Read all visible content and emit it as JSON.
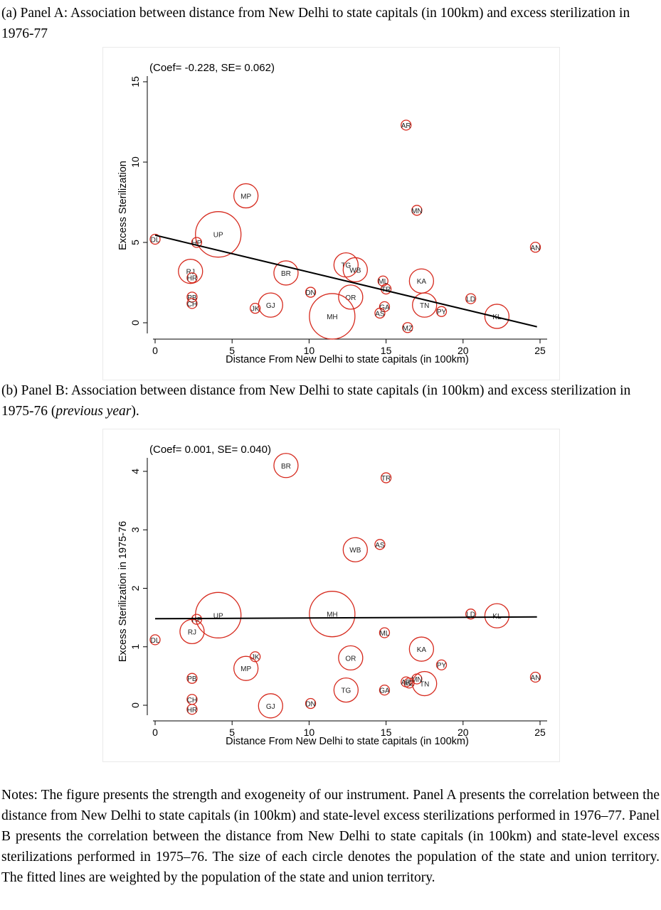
{
  "captions": {
    "a": "(a) Panel A: Association between distance from New Delhi to state capitals (in 100km) and excess sterilization in 1976-77",
    "b_main": "(b) Panel B: Association between distance from New Delhi to state capitals (in 100km) and excess sterilization in 1975-76 (",
    "b_italic": "previous year",
    "b_end": ")."
  },
  "notes": "Notes: The figure presents the strength and exogeneity of our instrument. Panel A presents the correlation between the distance from New Delhi to state capitals (in 100km) and state-level excess sterilizations performed in 1976–77. Panel B presents the correlation between the distance from New Delhi to state capitals (in 100km) and state-level excess sterilizations performed in 1975–76. The size of each circle denotes the population of the state and union territory. The fitted lines are weighted by the population of the state and union territory.",
  "chart_data": [
    {
      "type": "scatter",
      "annotation": "(Coef= -0.228, SE= 0.062)",
      "xlabel": "Distance From New Delhi to state capitals (in 100km)",
      "ylabel": "Excess Sterilization",
      "xlim": [
        0,
        25
      ],
      "ylim": [
        0,
        15
      ],
      "xticks": [
        0,
        5,
        10,
        15,
        20,
        25
      ],
      "yticks": [
        0,
        5,
        10,
        15
      ],
      "marker_color": "#d62a1e",
      "fit_line": {
        "x": [
          0,
          24.8
        ],
        "y": [
          5.45,
          -0.25
        ]
      },
      "points": [
        {
          "label": "AR",
          "x": 16.3,
          "y": 12.3,
          "size": "small"
        },
        {
          "label": "MP",
          "x": 5.9,
          "y": 7.9,
          "size": "medium"
        },
        {
          "label": "MN",
          "x": 17.0,
          "y": 7.0,
          "size": "small"
        },
        {
          "label": "AN",
          "x": 24.7,
          "y": 4.7,
          "size": "small"
        },
        {
          "label": "DL",
          "x": 0.0,
          "y": 5.2,
          "size": "small"
        },
        {
          "label": "HP",
          "x": 2.7,
          "y": 5.0,
          "size": "small"
        },
        {
          "label": "UP",
          "x": 4.1,
          "y": 5.5,
          "size": "large"
        },
        {
          "label": "RJ",
          "x": 2.3,
          "y": 3.2,
          "size": "medium"
        },
        {
          "label": "HR",
          "x": 2.4,
          "y": 2.8,
          "size": "small"
        },
        {
          "label": "PB",
          "x": 2.4,
          "y": 1.6,
          "size": "small"
        },
        {
          "label": "CH",
          "x": 2.4,
          "y": 1.2,
          "size": "small"
        },
        {
          "label": "BR",
          "x": 8.5,
          "y": 3.1,
          "size": "medium"
        },
        {
          "label": "TG",
          "x": 12.4,
          "y": 3.6,
          "size": "medium"
        },
        {
          "label": "WB",
          "x": 13.0,
          "y": 3.3,
          "size": "medium"
        },
        {
          "label": "ML",
          "x": 14.8,
          "y": 2.6,
          "size": "small"
        },
        {
          "label": "TR",
          "x": 15.0,
          "y": 2.1,
          "size": "small"
        },
        {
          "label": "KA",
          "x": 17.3,
          "y": 2.6,
          "size": "medium"
        },
        {
          "label": "DN",
          "x": 10.1,
          "y": 1.9,
          "size": "small"
        },
        {
          "label": "OR",
          "x": 12.7,
          "y": 1.6,
          "size": "medium"
        },
        {
          "label": "LD",
          "x": 20.5,
          "y": 1.5,
          "size": "small"
        },
        {
          "label": "JK",
          "x": 6.5,
          "y": 0.9,
          "size": "small"
        },
        {
          "label": "GJ",
          "x": 7.5,
          "y": 1.1,
          "size": "medium"
        },
        {
          "label": "MH",
          "x": 11.5,
          "y": 0.4,
          "size": "large"
        },
        {
          "label": "GA",
          "x": 14.9,
          "y": 1.0,
          "size": "small"
        },
        {
          "label": "AS",
          "x": 14.6,
          "y": 0.6,
          "size": "small"
        },
        {
          "label": "TN",
          "x": 17.5,
          "y": 1.1,
          "size": "medium"
        },
        {
          "label": "PY",
          "x": 18.6,
          "y": 0.7,
          "size": "small"
        },
        {
          "label": "KL",
          "x": 22.2,
          "y": 0.4,
          "size": "medium"
        },
        {
          "label": "MZ",
          "x": 16.4,
          "y": -0.3,
          "size": "small"
        }
      ]
    },
    {
      "type": "scatter",
      "annotation": "(Coef= 0.001, SE= 0.040)",
      "xlabel": "Distance From New Delhi to state capitals (in 100km)",
      "ylabel": "Excess Sterilization in 1975-76",
      "xlim": [
        0,
        25
      ],
      "ylim": [
        0,
        4
      ],
      "xticks": [
        0,
        5,
        10,
        15,
        20,
        25
      ],
      "yticks": [
        0,
        1,
        2,
        3,
        4
      ],
      "marker_color": "#d62a1e",
      "fit_line": {
        "x": [
          0,
          24.8
        ],
        "y": [
          1.48,
          1.51
        ]
      },
      "points": [
        {
          "label": "BR",
          "x": 8.5,
          "y": 4.1,
          "size": "medium"
        },
        {
          "label": "TR",
          "x": 15.0,
          "y": 3.89,
          "size": "small"
        },
        {
          "label": "AS",
          "x": 14.6,
          "y": 2.75,
          "size": "small"
        },
        {
          "label": "WB",
          "x": 13.0,
          "y": 2.66,
          "size": "medium"
        },
        {
          "label": "UP",
          "x": 4.1,
          "y": 1.54,
          "size": "large"
        },
        {
          "label": "HP",
          "x": 2.7,
          "y": 1.47,
          "size": "small"
        },
        {
          "label": "MH",
          "x": 11.5,
          "y": 1.56,
          "size": "large"
        },
        {
          "label": "LD",
          "x": 20.5,
          "y": 1.56,
          "size": "small"
        },
        {
          "label": "KL",
          "x": 22.2,
          "y": 1.53,
          "size": "medium"
        },
        {
          "label": "RJ",
          "x": 2.4,
          "y": 1.26,
          "size": "medium"
        },
        {
          "label": "ML",
          "x": 14.9,
          "y": 1.24,
          "size": "small"
        },
        {
          "label": "DL",
          "x": 0.0,
          "y": 1.12,
          "size": "small"
        },
        {
          "label": "KA",
          "x": 17.3,
          "y": 0.96,
          "size": "medium"
        },
        {
          "label": "JK",
          "x": 6.5,
          "y": 0.83,
          "size": "small"
        },
        {
          "label": "OR",
          "x": 12.7,
          "y": 0.81,
          "size": "medium"
        },
        {
          "label": "PY",
          "x": 18.6,
          "y": 0.69,
          "size": "small"
        },
        {
          "label": "MP",
          "x": 5.9,
          "y": 0.63,
          "size": "medium"
        },
        {
          "label": "PB",
          "x": 2.4,
          "y": 0.46,
          "size": "small"
        },
        {
          "label": "AN",
          "x": 24.7,
          "y": 0.48,
          "size": "small"
        },
        {
          "label": "AR",
          "x": 16.3,
          "y": 0.4,
          "size": "small"
        },
        {
          "label": "MN",
          "x": 17.0,
          "y": 0.45,
          "size": "small"
        },
        {
          "label": "MZ",
          "x": 16.5,
          "y": 0.38,
          "size": "small"
        },
        {
          "label": "TN",
          "x": 17.5,
          "y": 0.37,
          "size": "medium"
        },
        {
          "label": "TG",
          "x": 12.4,
          "y": 0.26,
          "size": "medium"
        },
        {
          "label": "GA",
          "x": 14.9,
          "y": 0.26,
          "size": "small"
        },
        {
          "label": "CH",
          "x": 2.4,
          "y": 0.1,
          "size": "small"
        },
        {
          "label": "DN",
          "x": 10.1,
          "y": 0.03,
          "size": "small"
        },
        {
          "label": "GJ",
          "x": 7.5,
          "y": -0.01,
          "size": "medium"
        },
        {
          "label": "HR",
          "x": 2.4,
          "y": -0.07,
          "size": "small"
        }
      ]
    }
  ]
}
